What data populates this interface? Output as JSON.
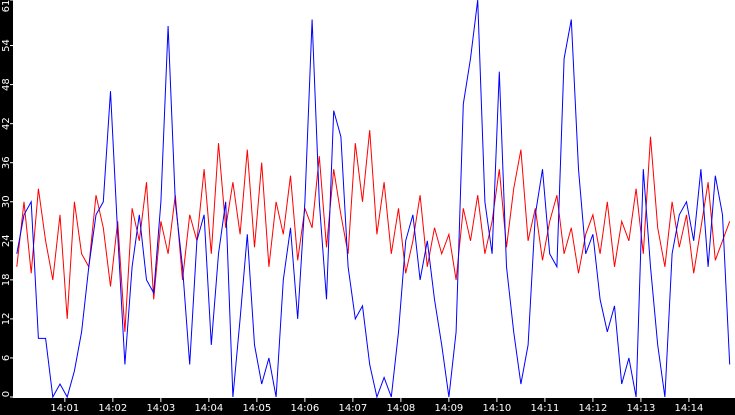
{
  "chart_data": {
    "type": "line",
    "x": [
      0,
      0.15,
      0.3,
      0.45,
      0.6,
      0.75,
      0.9,
      1.05,
      1.2,
      1.35,
      1.5,
      1.65,
      1.8,
      1.95,
      2.1,
      2.25,
      2.4,
      2.55,
      2.7,
      2.85,
      3,
      3.15,
      3.3,
      3.45,
      3.6,
      3.75,
      3.9,
      4.05,
      4.2,
      4.35,
      4.5,
      4.65,
      4.8,
      4.95,
      5.1,
      5.25,
      5.4,
      5.55,
      5.7,
      5.85,
      6,
      6.15,
      6.3,
      6.45,
      6.6,
      6.75,
      6.9,
      7.05,
      7.2,
      7.35,
      7.5,
      7.65,
      7.8,
      7.95,
      8.1,
      8.25,
      8.4,
      8.55,
      8.7,
      8.85,
      9,
      9.15,
      9.3,
      9.45,
      9.6,
      9.75,
      9.9,
      10.05,
      10.2,
      10.35,
      10.5,
      10.65,
      10.8,
      10.95,
      11.1,
      11.25,
      11.4,
      11.55,
      11.7,
      11.85,
      12,
      12.15,
      12.3,
      12.45,
      12.6,
      12.75,
      12.9,
      13.05,
      13.2,
      13.35,
      13.5,
      13.65,
      13.8,
      13.95,
      14.1,
      14.25,
      14.4,
      14.55,
      14.7,
      14.85
    ],
    "series": [
      {
        "color": "#0000ff",
        "values": [
          22,
          28,
          30,
          9,
          9,
          0,
          2,
          0,
          4,
          10,
          20,
          28,
          30,
          47,
          25,
          5,
          20,
          28,
          18,
          16,
          30,
          57,
          30,
          20,
          5,
          24,
          28,
          8,
          22,
          30,
          0,
          12,
          25,
          8,
          2,
          6,
          0,
          18,
          26,
          12,
          30,
          58,
          30,
          15,
          44,
          40,
          20,
          12,
          14,
          5,
          0,
          3,
          0,
          10,
          24,
          28,
          18,
          24,
          15,
          8,
          0,
          10,
          45,
          52,
          61,
          30,
          22,
          50,
          20,
          10,
          2,
          8,
          28,
          35,
          22,
          20,
          52,
          58,
          35,
          22,
          25,
          15,
          10,
          14,
          2,
          6,
          0,
          35,
          20,
          8,
          0,
          22,
          28,
          30,
          24,
          35,
          20,
          34,
          28,
          5
        ]
      },
      {
        "color": "#ff0000",
        "values": [
          20,
          30,
          19,
          32,
          24,
          18,
          28,
          12,
          30,
          22,
          20,
          31,
          26,
          17,
          27,
          10,
          29,
          24,
          33,
          15,
          27,
          22,
          31,
          18,
          28,
          24,
          35,
          22,
          39,
          26,
          33,
          25,
          38,
          23,
          36,
          20,
          30,
          25,
          34,
          21,
          29,
          26,
          37,
          23,
          35,
          28,
          22,
          39,
          30,
          41,
          25,
          33,
          22,
          29,
          19,
          24,
          31,
          20,
          26,
          22,
          25,
          18,
          29,
          24,
          31,
          22,
          27,
          35,
          23,
          32,
          38,
          24,
          29,
          21,
          27,
          31,
          22,
          26,
          19,
          25,
          28,
          22,
          30,
          20,
          27,
          24,
          32,
          22,
          40,
          26,
          20,
          30,
          23,
          28,
          19,
          26,
          33,
          21,
          24,
          27
        ]
      }
    ],
    "xlim": [
      -0.08,
      14.96
    ],
    "xticks": [
      {
        "value": 1,
        "label": "14:01"
      },
      {
        "value": 2,
        "label": "14:02"
      },
      {
        "value": 3,
        "label": "14:03"
      },
      {
        "value": 4,
        "label": "14:04"
      },
      {
        "value": 5,
        "label": "14:05"
      },
      {
        "value": 6,
        "label": "14:06"
      },
      {
        "value": 7,
        "label": "14:07"
      },
      {
        "value": 8,
        "label": "14:08"
      },
      {
        "value": 9,
        "label": "14:09"
      },
      {
        "value": 10,
        "label": "14:10"
      },
      {
        "value": 11,
        "label": "14:11"
      },
      {
        "value": 12,
        "label": "14:12"
      },
      {
        "value": 13,
        "label": "14:13"
      },
      {
        "value": 14,
        "label": "14:14"
      }
    ],
    "ylim": [
      0,
      61
    ],
    "yticks": [
      0,
      6,
      12,
      18,
      24,
      30,
      36,
      42,
      48,
      54,
      61
    ]
  }
}
